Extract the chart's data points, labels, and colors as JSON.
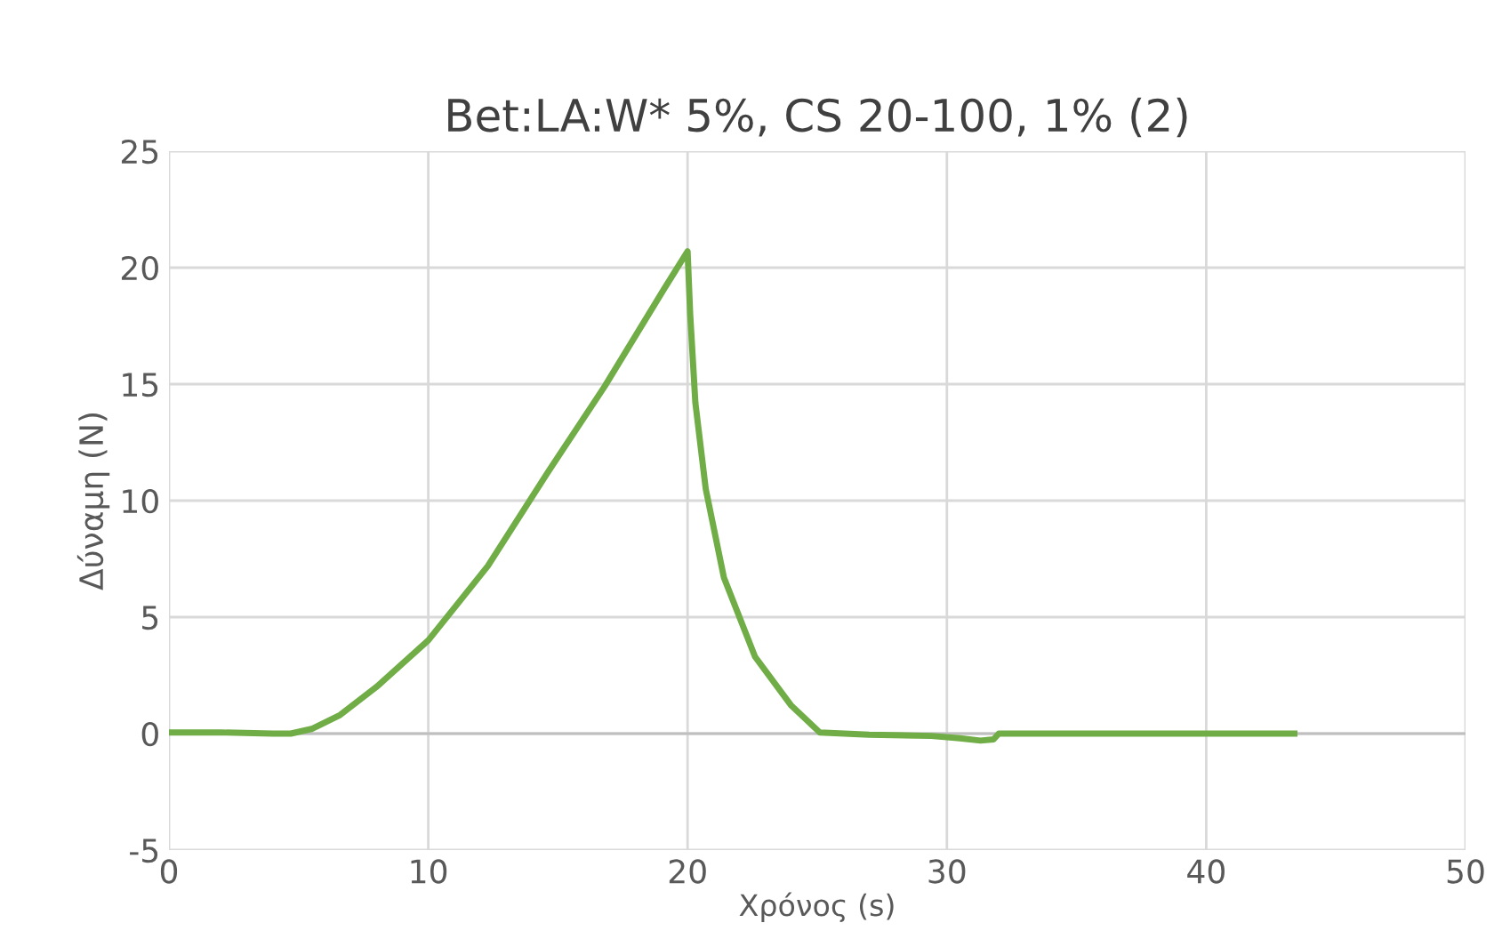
{
  "chart_data": {
    "type": "line",
    "title": "Bet:LA:W* 5%, CS 20-100, 1% (2)",
    "xlabel": "Χρόνος (s)",
    "ylabel": "Δύναμη (N)",
    "series": [
      {
        "color": "#70ad47",
        "x": [
          0,
          2,
          4,
          4.7,
          5.5,
          6.6,
          8,
          10,
          12.3,
          14.6,
          16.8,
          19.1,
          20.0,
          20.1,
          20.3,
          20.7,
          21.4,
          22.6,
          24,
          25.1,
          27,
          29.4,
          30.5,
          31.3,
          31.8,
          32.0,
          35,
          40,
          43.4
        ],
        "values": [
          0.05,
          0.05,
          0.0,
          0.0,
          0.2,
          0.8,
          2.0,
          4.0,
          7.2,
          11.2,
          14.9,
          19.1,
          20.7,
          18,
          14.2,
          10.5,
          6.7,
          3.3,
          1.2,
          0.05,
          -0.05,
          -0.1,
          -0.2,
          -0.3,
          -0.25,
          0.0,
          0.0,
          0.0,
          0.0
        ]
      }
    ],
    "xlim": [
      0,
      50
    ],
    "xticks": [
      0,
      10,
      20,
      30,
      40,
      50
    ],
    "ylim": [
      -5,
      25
    ],
    "yticks": [
      -5,
      0,
      5,
      10,
      15,
      20,
      25
    ],
    "grid": true,
    "legend": false,
    "marker": "none",
    "line_style": "solid"
  }
}
